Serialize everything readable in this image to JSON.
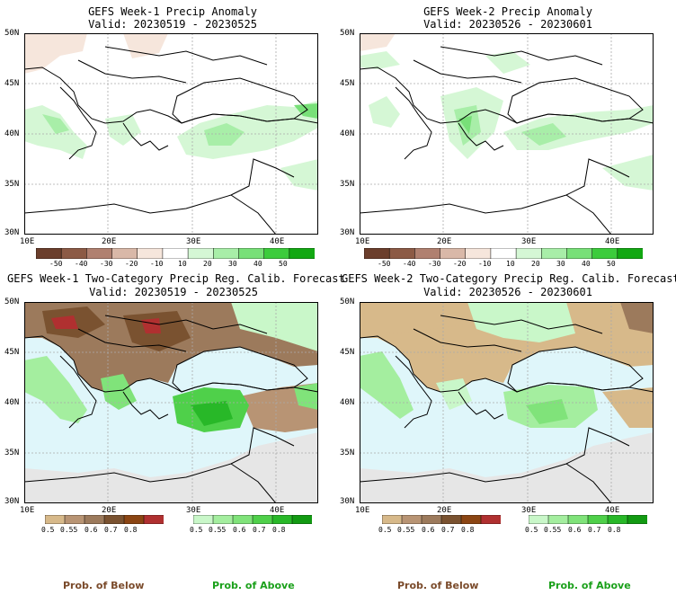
{
  "panels": [
    {
      "title": "GEFS Week-1 Precip Anomaly",
      "valid": "Valid: 20230519 - 20230525",
      "lat_labels": [
        "50N",
        "45N",
        "40N",
        "35N",
        "30N"
      ],
      "lon_labels": [
        "10E",
        "20E",
        "30E",
        "40E"
      ],
      "kind": "anomaly"
    },
    {
      "title": "GEFS Week-2 Precip Anomaly",
      "valid": "Valid: 20230526 - 20230601",
      "lat_labels": [
        "50N",
        "45N",
        "40N",
        "35N",
        "30N"
      ],
      "lon_labels": [
        "10E",
        "20E",
        "30E",
        "40E"
      ],
      "kind": "anomaly"
    },
    {
      "title": "GEFS Week-1 Two-Category Precip Reg. Calib. Forecast",
      "valid": "Valid: 20230519 - 20230525",
      "lat_labels": [
        "50N",
        "45N",
        "40N",
        "35N",
        "30N"
      ],
      "lon_labels": [
        "10E",
        "20E",
        "30E",
        "40E"
      ],
      "kind": "probability"
    },
    {
      "title": "GEFS Week-2 Two-Category Precip Reg. Calib. Forecast",
      "valid": "Valid: 20230526 - 20230601",
      "lat_labels": [
        "50N",
        "45N",
        "40N",
        "35N",
        "30N"
      ],
      "lon_labels": [
        "10E",
        "20E",
        "30E",
        "40E"
      ],
      "kind": "probability"
    }
  ],
  "anomaly_colorbar": {
    "labels": [
      "-50",
      "-40",
      "-30",
      "-20",
      "-10",
      "10",
      "20",
      "30",
      "40",
      "50"
    ],
    "colors": [
      "#6b3e2c",
      "#8c5a45",
      "#b08070",
      "#d9b8a8",
      "#f6e6dc",
      "#ffffff",
      "#d5f7d5",
      "#a8eea8",
      "#78e078",
      "#3ccc3c",
      "#12a812"
    ]
  },
  "prob_below_colorbar": {
    "labels": [
      "0.5",
      "0.55",
      "0.6",
      "0.7",
      "0.8"
    ],
    "colors": [
      "#d7b98a",
      "#b89474",
      "#9c7a5c",
      "#7a5230",
      "#8b4513",
      "#b03030"
    ]
  },
  "prob_above_colorbar": {
    "labels": [
      "0.5",
      "0.55",
      "0.6",
      "0.7",
      "0.8"
    ],
    "colors": [
      "#c9f7c9",
      "#a4ee9f",
      "#80e37a",
      "#4fd04a",
      "#28b828",
      "#129a12"
    ]
  },
  "footer": {
    "below_label": "Prob. of Below",
    "above_label": "Prob. of Above",
    "below_color": "#7a4a2a",
    "above_color": "#1aa01a"
  },
  "map_colors": {
    "sea_probability": "#dff6fa",
    "land_nodata": "#e6e6e6",
    "coast": "#000000"
  }
}
